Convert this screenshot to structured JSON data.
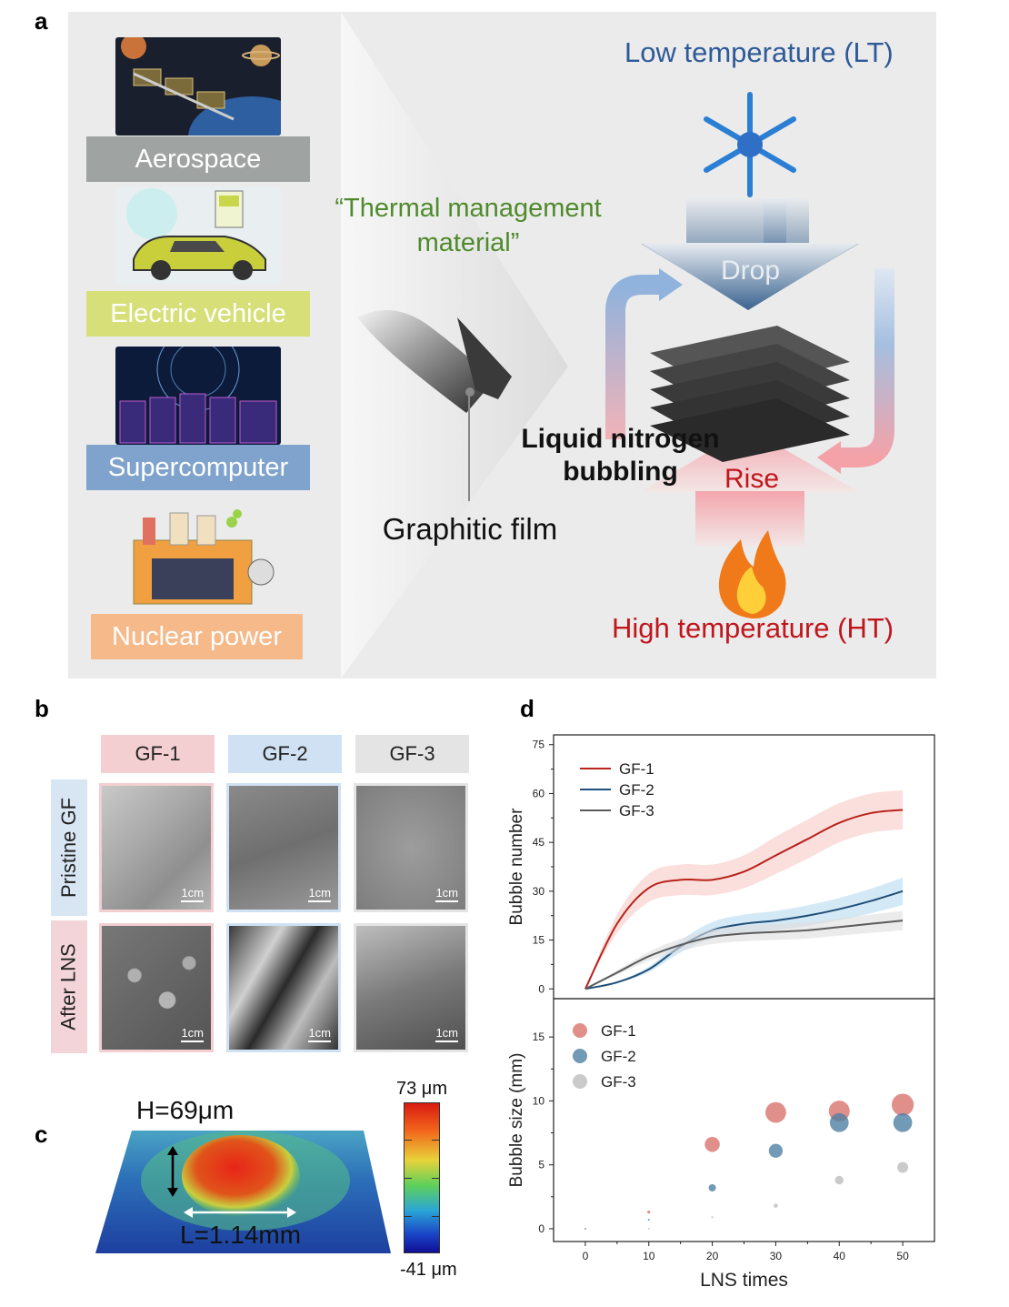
{
  "panel_labels": {
    "a": "a",
    "b": "b",
    "c": "c",
    "d": "d"
  },
  "panel_a": {
    "applications": [
      {
        "label": "Aerospace",
        "color": "#9fa3a1"
      },
      {
        "label": "Electric vehicle",
        "color": "#d7df78"
      },
      {
        "label": "Supercomputer",
        "color": "#7fa3cc"
      },
      {
        "label": "Nuclear power",
        "color": "#f5b98a"
      }
    ],
    "material_caption": "“Thermal management material”",
    "film_label": "Graphitic film",
    "process_label": "Liquid nitrogen bubbling",
    "low_temp": "Low temperature (LT)",
    "high_temp": "High temperature (HT)",
    "drop": "Drop",
    "rise": "Rise",
    "colors": {
      "low": "#2e5a99",
      "high": "#c0161c",
      "caption": "#4f8a2c"
    }
  },
  "panel_b": {
    "columns": [
      {
        "label": "GF-1",
        "color": "#f3cfd1"
      },
      {
        "label": "GF-2",
        "color": "#cfe1f3"
      },
      {
        "label": "GF-3",
        "color": "#e4e4e4"
      }
    ],
    "rows": [
      {
        "label": "Pristine GF",
        "color": "#d8e6f4"
      },
      {
        "label": "After LNS",
        "color": "#f3d4d8"
      }
    ],
    "scale_bar": "1cm"
  },
  "panel_c": {
    "height_label": "H=69μm",
    "length_label": "L=1.14mm",
    "colorbar_max": "73 μm",
    "colorbar_min": "-41 μm"
  },
  "chart_data": [
    {
      "type": "line",
      "ylabel": "Bubble number",
      "ylim": [
        -3,
        78
      ],
      "yticks": [
        0,
        15,
        30,
        45,
        60,
        75
      ],
      "x": [
        0,
        5,
        10,
        15,
        20,
        25,
        30,
        35,
        40,
        45,
        50
      ],
      "series": [
        {
          "name": "GF-1",
          "color": "#b8231a",
          "band": "#f7c9c4",
          "values": [
            0,
            20,
            31,
            33.5,
            33.5,
            36,
            41,
            46,
            51,
            54,
            55
          ]
        },
        {
          "name": "GF-2",
          "color": "#1f4e79",
          "band": "#b7dbf0",
          "values": [
            0,
            2,
            6,
            13,
            18,
            20,
            21,
            22.5,
            24.5,
            27,
            30
          ]
        },
        {
          "name": "GF-3",
          "color": "#5b5b5b",
          "band": "#dddddd",
          "values": [
            0,
            5,
            10,
            13.5,
            16,
            17,
            17.5,
            18,
            19,
            20,
            21
          ]
        }
      ],
      "legend": "top-left"
    },
    {
      "type": "scatter",
      "xlabel": "LNS times",
      "ylabel": "Bubble size (mm)",
      "xlim": [
        -5,
        55
      ],
      "ylim": [
        -1,
        18
      ],
      "xticks": [
        0,
        10,
        20,
        30,
        40,
        50
      ],
      "yticks": [
        0,
        5,
        10,
        15
      ],
      "series": [
        {
          "name": "GF-1",
          "color": "#d9736e",
          "x": [
            0,
            10,
            20,
            30,
            40,
            50
          ],
          "values": [
            0,
            1.3,
            6.6,
            9.1,
            9.2,
            9.7
          ]
        },
        {
          "name": "GF-2",
          "color": "#4f7fa3",
          "x": [
            0,
            10,
            20,
            30,
            40,
            50
          ],
          "values": [
            0,
            0.7,
            3.2,
            6.1,
            8.3,
            8.3
          ]
        },
        {
          "name": "GF-3",
          "color": "#bdbdbd",
          "x": [
            0,
            10,
            20,
            30,
            40,
            50
          ],
          "values": [
            0,
            0,
            0.9,
            1.8,
            3.8,
            4.8
          ]
        }
      ],
      "legend": "top-left"
    }
  ]
}
